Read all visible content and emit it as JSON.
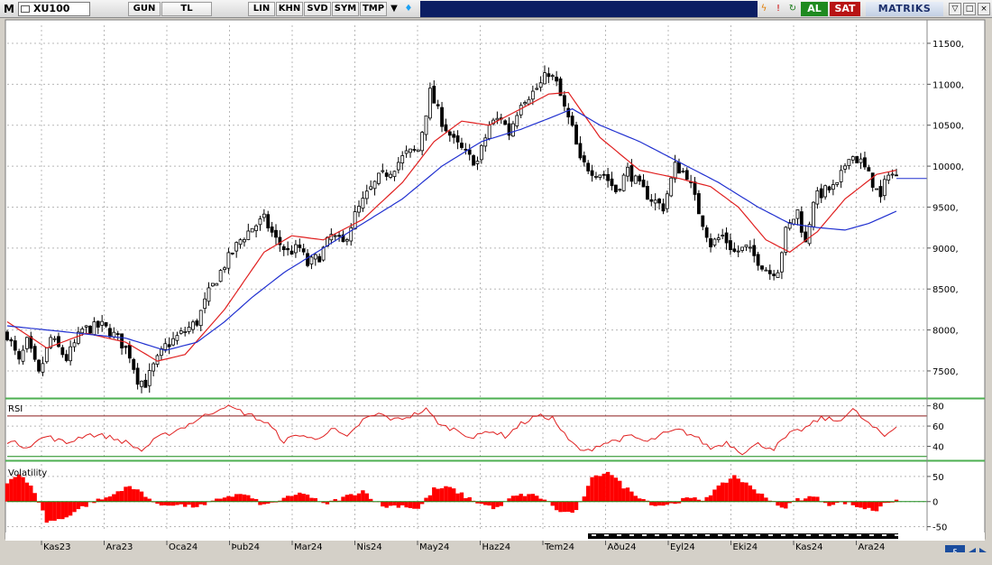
{
  "toolbar": {
    "logo": "M",
    "symbol": "XU100",
    "buttons": [
      "GUN",
      "TL",
      "LIN",
      "KHN",
      "SVD",
      "SYM",
      "TMP"
    ],
    "buy_label": "AL",
    "sell_label": "SAT",
    "brand": "MATRIKS",
    "icons": [
      "grid-icon",
      "dropdown-arrow-icon",
      "twitter-icon",
      "lightning-icon",
      "alert-icon",
      "refresh-icon",
      "minimize-icon",
      "restore-icon",
      "close-icon"
    ]
  },
  "chart_data": [
    {
      "type": "candlestick",
      "title": "",
      "symbol": "XU100",
      "y_ticks": [
        7500,
        8000,
        8500,
        9000,
        9500,
        10000,
        10500,
        11000,
        11500
      ],
      "y_tick_labels": [
        "7500,",
        "8000,",
        "8500,",
        "9000,",
        "9500,",
        "10000,",
        "10500,",
        "11000,",
        "11500,"
      ],
      "ylim": [
        7180,
        11720
      ],
      "x_labels": [
        "Kas23",
        "Ara23",
        "Oca24",
        "Þub24",
        "Mar24",
        "Nis24",
        "May24",
        "Haz24",
        "Tem24",
        "Aðu24",
        "Eyl24",
        "Eki24",
        "Kas24",
        "Ara24"
      ],
      "close_keypoints": [
        [
          0,
          7950
        ],
        [
          3,
          7600
        ],
        [
          5,
          7850
        ],
        [
          8,
          7450
        ],
        [
          11,
          7900
        ],
        [
          15,
          7650
        ],
        [
          19,
          8000
        ],
        [
          24,
          8050
        ],
        [
          28,
          7900
        ],
        [
          31,
          7700
        ],
        [
          33,
          7400
        ],
        [
          35,
          7350
        ],
        [
          37,
          7550
        ],
        [
          40,
          7800
        ],
        [
          44,
          7950
        ],
        [
          48,
          8100
        ],
        [
          51,
          8450
        ],
        [
          55,
          8800
        ],
        [
          59,
          9100
        ],
        [
          62,
          9250
        ],
        [
          65,
          9350
        ],
        [
          68,
          9100
        ],
        [
          71,
          8950
        ],
        [
          74,
          9000
        ],
        [
          76,
          8800
        ],
        [
          79,
          8900
        ],
        [
          82,
          9150
        ],
        [
          85,
          9050
        ],
        [
          88,
          9400
        ],
        [
          91,
          9650
        ],
        [
          94,
          9850
        ],
        [
          97,
          9950
        ],
        [
          101,
          10150
        ],
        [
          104,
          10200
        ],
        [
          107,
          10900
        ],
        [
          110,
          10550
        ],
        [
          113,
          10300
        ],
        [
          117,
          10100
        ],
        [
          119,
          10050
        ],
        [
          122,
          10500
        ],
        [
          125,
          10600
        ],
        [
          127,
          10400
        ],
        [
          130,
          10800
        ],
        [
          133,
          10900
        ],
        [
          135,
          11000
        ],
        [
          137,
          11150
        ],
        [
          139,
          11000
        ],
        [
          141,
          10700
        ],
        [
          143,
          10450
        ],
        [
          145,
          10050
        ],
        [
          148,
          9950
        ],
        [
          151,
          9900
        ],
        [
          154,
          9700
        ],
        [
          157,
          9950
        ],
        [
          160,
          9750
        ],
        [
          163,
          9600
        ],
        [
          166,
          9500
        ],
        [
          169,
          10000
        ],
        [
          172,
          9900
        ],
        [
          175,
          9450
        ],
        [
          178,
          9050
        ],
        [
          181,
          9150
        ],
        [
          184,
          8950
        ],
        [
          187,
          9000
        ],
        [
          190,
          8850
        ],
        [
          193,
          8700
        ],
        [
          195,
          8750
        ],
        [
          197,
          9200
        ],
        [
          200,
          9450
        ],
        [
          202,
          9050
        ],
        [
          204,
          9600
        ],
        [
          207,
          9700
        ],
        [
          210,
          9750
        ],
        [
          213,
          10150
        ],
        [
          216,
          10050
        ],
        [
          219,
          9800
        ],
        [
          221,
          9600
        ],
        [
          223,
          9950
        ],
        [
          225,
          9850
        ]
      ],
      "series": [
        {
          "name": "",
          "type": "ma",
          "color": "#e02020",
          "keypoints": [
            [
              0,
              8100
            ],
            [
              10,
              7780
            ],
            [
              20,
              7960
            ],
            [
              30,
              7850
            ],
            [
              38,
              7620
            ],
            [
              45,
              7700
            ],
            [
              55,
              8250
            ],
            [
              65,
              8950
            ],
            [
              72,
              9150
            ],
            [
              80,
              9100
            ],
            [
              90,
              9350
            ],
            [
              100,
              9800
            ],
            [
              108,
              10300
            ],
            [
              115,
              10550
            ],
            [
              122,
              10500
            ],
            [
              130,
              10700
            ],
            [
              137,
              10880
            ],
            [
              142,
              10900
            ],
            [
              150,
              10350
            ],
            [
              160,
              9950
            ],
            [
              170,
              9850
            ],
            [
              178,
              9750
            ],
            [
              185,
              9500
            ],
            [
              192,
              9100
            ],
            [
              198,
              8950
            ],
            [
              205,
              9200
            ],
            [
              212,
              9600
            ],
            [
              220,
              9900
            ],
            [
              225,
              9950
            ]
          ]
        },
        {
          "name": "",
          "type": "ma",
          "color": "#2030d0",
          "keypoints": [
            [
              0,
              8050
            ],
            [
              10,
              8000
            ],
            [
              20,
              7950
            ],
            [
              30,
              7900
            ],
            [
              40,
              7750
            ],
            [
              48,
              7850
            ],
            [
              55,
              8100
            ],
            [
              62,
              8400
            ],
            [
              70,
              8700
            ],
            [
              80,
              9000
            ],
            [
              90,
              9300
            ],
            [
              100,
              9600
            ],
            [
              110,
              10000
            ],
            [
              120,
              10300
            ],
            [
              130,
              10450
            ],
            [
              138,
              10600
            ],
            [
              143,
              10700
            ],
            [
              150,
              10500
            ],
            [
              160,
              10300
            ],
            [
              170,
              10050
            ],
            [
              180,
              9800
            ],
            [
              190,
              9500
            ],
            [
              198,
              9300
            ],
            [
              205,
              9250
            ],
            [
              212,
              9220
            ],
            [
              218,
              9300
            ],
            [
              225,
              9450
            ]
          ]
        }
      ]
    },
    {
      "type": "line",
      "title": "RSI",
      "y_ticks": [
        40,
        60,
        80
      ],
      "y_tick_labels": [
        "40",
        "60",
        "80"
      ],
      "ylim": [
        28,
        85
      ],
      "reference_lines": [
        70,
        30
      ],
      "keypoints": [
        [
          0,
          45
        ],
        [
          5,
          40
        ],
        [
          10,
          50
        ],
        [
          15,
          43
        ],
        [
          20,
          52
        ],
        [
          25,
          50
        ],
        [
          30,
          44
        ],
        [
          34,
          36
        ],
        [
          38,
          48
        ],
        [
          44,
          58
        ],
        [
          50,
          70
        ],
        [
          55,
          80
        ],
        [
          58,
          76
        ],
        [
          62,
          70
        ],
        [
          66,
          62
        ],
        [
          70,
          45
        ],
        [
          74,
          52
        ],
        [
          78,
          46
        ],
        [
          82,
          58
        ],
        [
          86,
          48
        ],
        [
          90,
          66
        ],
        [
          94,
          72
        ],
        [
          98,
          66
        ],
        [
          102,
          70
        ],
        [
          106,
          76
        ],
        [
          110,
          60
        ],
        [
          114,
          56
        ],
        [
          118,
          48
        ],
        [
          122,
          56
        ],
        [
          126,
          50
        ],
        [
          130,
          62
        ],
        [
          134,
          70
        ],
        [
          138,
          68
        ],
        [
          142,
          46
        ],
        [
          146,
          34
        ],
        [
          150,
          42
        ],
        [
          154,
          46
        ],
        [
          158,
          50
        ],
        [
          162,
          44
        ],
        [
          166,
          52
        ],
        [
          170,
          56
        ],
        [
          174,
          50
        ],
        [
          178,
          38
        ],
        [
          182,
          44
        ],
        [
          186,
          34
        ],
        [
          190,
          42
        ],
        [
          194,
          38
        ],
        [
          198,
          52
        ],
        [
          202,
          58
        ],
        [
          206,
          68
        ],
        [
          210,
          65
        ],
        [
          214,
          76
        ],
        [
          218,
          62
        ],
        [
          222,
          50
        ],
        [
          225,
          60
        ]
      ]
    },
    {
      "type": "bar",
      "title": "Volatility",
      "y_ticks": [
        -50,
        0,
        50
      ],
      "y_tick_labels": [
        "-50",
        "0",
        "50"
      ],
      "ylim": [
        -58,
        75
      ],
      "keypoints": [
        [
          0,
          40
        ],
        [
          3,
          55
        ],
        [
          7,
          20
        ],
        [
          10,
          -40
        ],
        [
          14,
          -35
        ],
        [
          18,
          -15
        ],
        [
          22,
          0
        ],
        [
          26,
          10
        ],
        [
          30,
          30
        ],
        [
          34,
          20
        ],
        [
          38,
          -8
        ],
        [
          42,
          -5
        ],
        [
          46,
          -10
        ],
        [
          50,
          -8
        ],
        [
          55,
          10
        ],
        [
          60,
          15
        ],
        [
          65,
          -8
        ],
        [
          70,
          5
        ],
        [
          75,
          18
        ],
        [
          80,
          -6
        ],
        [
          85,
          8
        ],
        [
          90,
          22
        ],
        [
          95,
          -10
        ],
        [
          100,
          -8
        ],
        [
          104,
          -15
        ],
        [
          108,
          25
        ],
        [
          112,
          28
        ],
        [
          116,
          10
        ],
        [
          120,
          -5
        ],
        [
          124,
          -14
        ],
        [
          128,
          10
        ],
        [
          132,
          15
        ],
        [
          136,
          5
        ],
        [
          140,
          -22
        ],
        [
          144,
          -20
        ],
        [
          148,
          45
        ],
        [
          152,
          62
        ],
        [
          156,
          30
        ],
        [
          160,
          10
        ],
        [
          164,
          -8
        ],
        [
          168,
          -5
        ],
        [
          172,
          6
        ],
        [
          176,
          4
        ],
        [
          180,
          28
        ],
        [
          184,
          52
        ],
        [
          188,
          30
        ],
        [
          192,
          10
        ],
        [
          196,
          -15
        ],
        [
          200,
          5
        ],
        [
          204,
          10
        ],
        [
          208,
          -5
        ],
        [
          212,
          -2
        ],
        [
          216,
          -12
        ],
        [
          220,
          -18
        ],
        [
          222,
          0
        ],
        [
          225,
          0
        ]
      ]
    }
  ]
}
